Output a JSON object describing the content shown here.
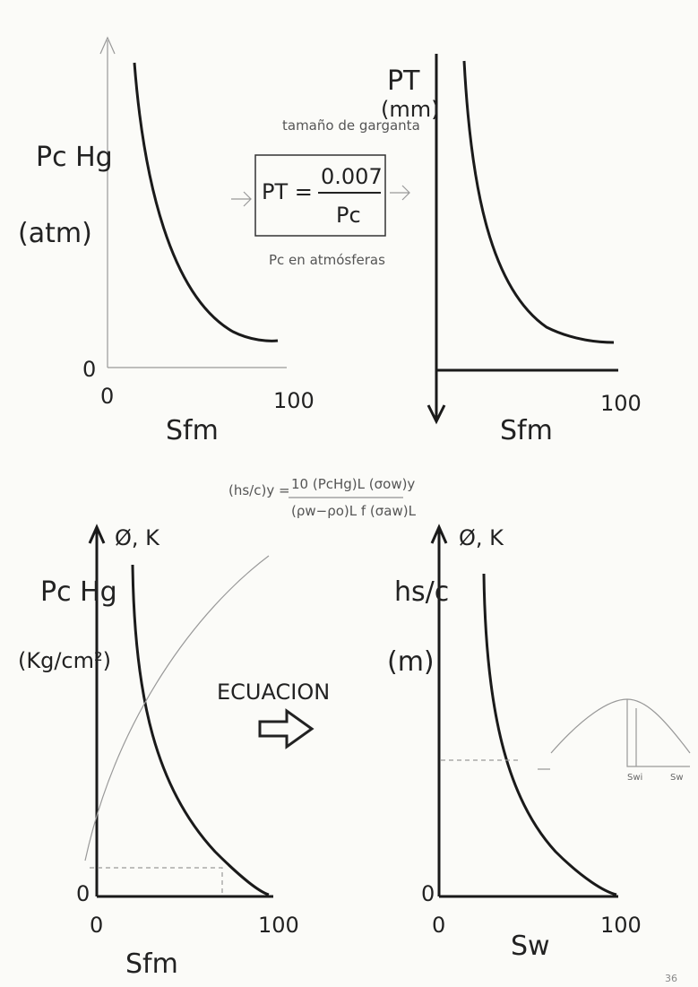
{
  "panels": [
    {
      "y_label": "Pc Hg",
      "y_unit": "(atm)",
      "origin_y": "0",
      "x_start": "0",
      "x_end": "100",
      "x_label": "Sfm"
    },
    {
      "y_label": "PT",
      "y_unit": "(mm)",
      "x_end": "100",
      "x_label": "Sfm"
    },
    {
      "y_top": "Ø, K",
      "y_label": "Pc Hg",
      "y_unit": "(Kg/cm²)",
      "origin_y": "0",
      "x_start": "0",
      "x_end": "100",
      "x_label": "Sfm"
    },
    {
      "y_top": "Ø, K",
      "y_label": "hs/c",
      "y_unit": "(m)",
      "origin_y": "0",
      "x_start": "0",
      "x_end": "100",
      "x_label": "Sw"
    }
  ],
  "box": {
    "note": "tamaño de garganta",
    "lhs": "PT =",
    "numerator": "0.007",
    "denominator": "Pc",
    "caption": "Pc en atmósferas"
  },
  "formula": {
    "lhs": "(hs/c)y =",
    "numerator": "10 (PcHg)L (σow)y",
    "denominator": "(ρw−ρo)L f (σaw)L"
  },
  "arrow_label": "ECUACION",
  "inset": {
    "swi": "Swi",
    "sw": "Sw"
  },
  "page_number": "36"
}
